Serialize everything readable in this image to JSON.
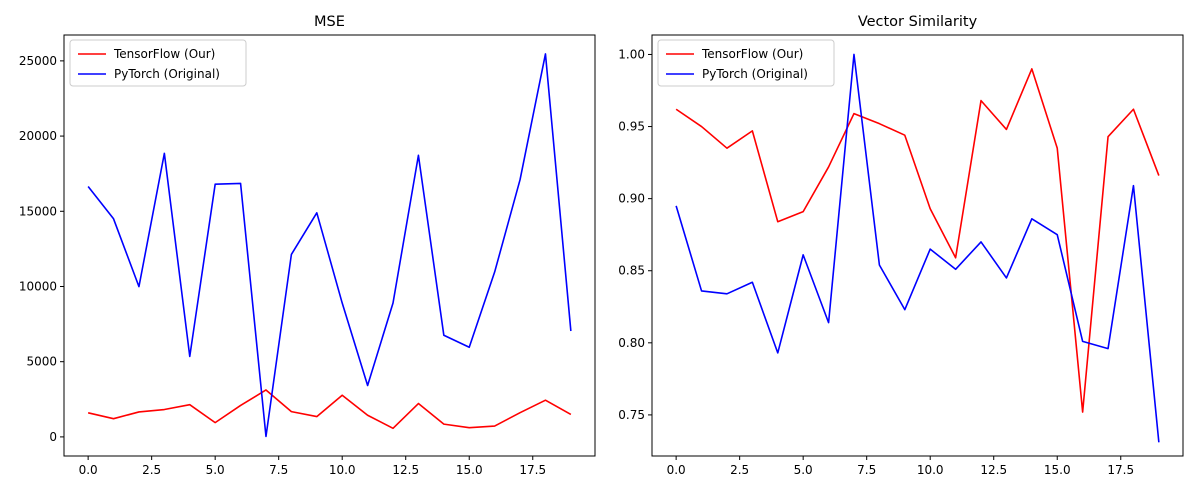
{
  "figure": {
    "left_title": "MSE",
    "right_title": "Vector Similarity"
  },
  "chart_data": [
    {
      "type": "line",
      "title": "MSE",
      "xlabel": "",
      "ylabel": "",
      "x": [
        0,
        1,
        2,
        3,
        4,
        5,
        6,
        7,
        8,
        9,
        10,
        11,
        12,
        13,
        14,
        15,
        16,
        17,
        18,
        19
      ],
      "xlim": [
        -0.95,
        19.95
      ],
      "ylim": [
        -1270,
        26720
      ],
      "xticks": [
        0,
        2.5,
        5,
        7.5,
        10,
        12.5,
        15,
        17.5
      ],
      "xtick_labels": [
        "0.0",
        "2.5",
        "5.0",
        "7.5",
        "10.0",
        "12.5",
        "15.0",
        "17.5"
      ],
      "yticks": [
        0,
        5000,
        10000,
        15000,
        20000,
        25000
      ],
      "ytick_labels": [
        "0",
        "5000",
        "10000",
        "15000",
        "20000",
        "25000"
      ],
      "grid": false,
      "legend_position": "top-left",
      "series": [
        {
          "name": "TensorFlow (Our)",
          "color": "#ff0000",
          "values": [
            1600,
            1210,
            1660,
            1820,
            2140,
            950,
            2090,
            3120,
            1680,
            1350,
            2770,
            1440,
            570,
            2220,
            850,
            610,
            720,
            1610,
            2440,
            1490
          ]
        },
        {
          "name": "PyTorch (Original)",
          "color": "#0000ff",
          "values": [
            16650,
            14500,
            9990,
            18850,
            5350,
            16800,
            16850,
            30,
            12130,
            14900,
            8900,
            3420,
            8900,
            18720,
            6760,
            5960,
            10960,
            17100,
            25460,
            7040
          ]
        }
      ]
    },
    {
      "type": "line",
      "title": "Vector Similarity",
      "xlabel": "",
      "ylabel": "",
      "x": [
        0,
        1,
        2,
        3,
        4,
        5,
        6,
        7,
        8,
        9,
        10,
        11,
        12,
        13,
        14,
        15,
        16,
        17,
        18,
        19
      ],
      "xlim": [
        -0.95,
        19.95
      ],
      "ylim": [
        0.7215,
        1.0135
      ],
      "xticks": [
        0,
        2.5,
        5,
        7.5,
        10,
        12.5,
        15,
        17.5
      ],
      "xtick_labels": [
        "0.0",
        "2.5",
        "5.0",
        "7.5",
        "10.0",
        "12.5",
        "15.0",
        "17.5"
      ],
      "yticks": [
        0.75,
        0.8,
        0.85,
        0.9,
        0.95,
        1.0
      ],
      "ytick_labels": [
        "0.75",
        "0.80",
        "0.85",
        "0.90",
        "0.95",
        "1.00"
      ],
      "grid": false,
      "legend_position": "top-left",
      "series": [
        {
          "name": "TensorFlow (Our)",
          "color": "#ff0000",
          "values": [
            0.962,
            0.95,
            0.935,
            0.947,
            0.884,
            0.891,
            0.922,
            0.959,
            0.952,
            0.944,
            0.893,
            0.859,
            0.968,
            0.948,
            0.99,
            0.935,
            0.752,
            0.943,
            0.962,
            0.916
          ]
        },
        {
          "name": "PyTorch (Original)",
          "color": "#0000ff",
          "values": [
            0.895,
            0.836,
            0.834,
            0.842,
            0.793,
            0.861,
            0.814,
            1.0,
            0.854,
            0.823,
            0.865,
            0.851,
            0.87,
            0.845,
            0.886,
            0.875,
            0.801,
            0.796,
            0.909,
            0.731
          ]
        }
      ]
    }
  ]
}
